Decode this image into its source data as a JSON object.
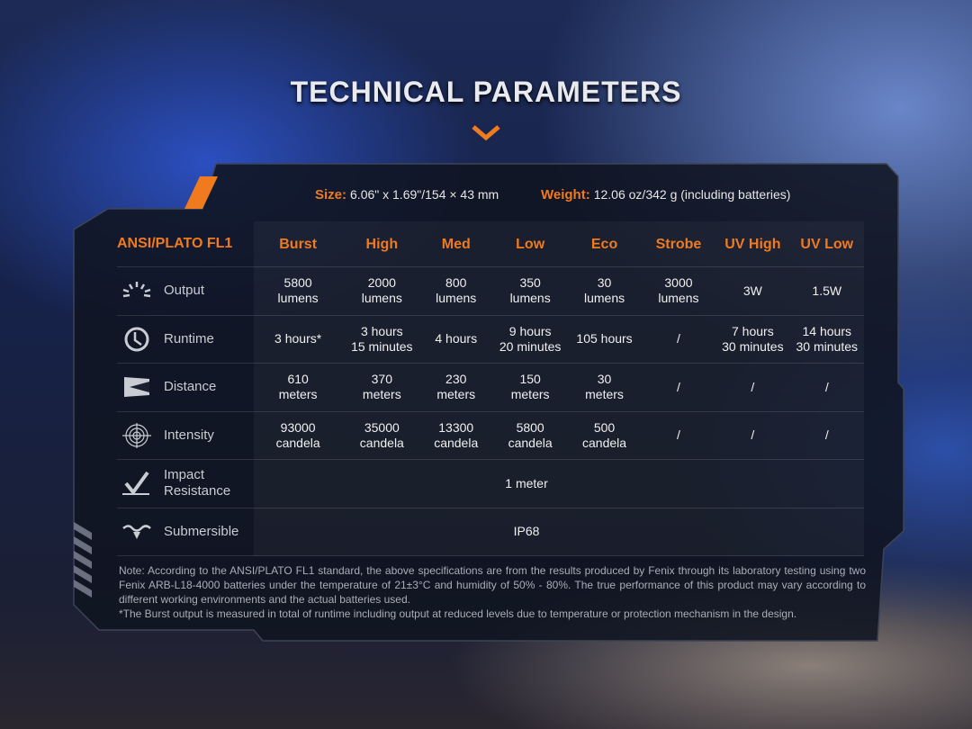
{
  "title": "TECHNICAL PARAMETERS",
  "size": {
    "label": "Size:",
    "value": "6.06\" x 1.69\"/154 × 43 mm"
  },
  "weight": {
    "label": "Weight:",
    "value": "12.06 oz/342 g (including batteries)"
  },
  "colors": {
    "accent": "#f07a1e",
    "panel": "#141a28"
  },
  "table": {
    "header": "ANSI/PLATO FL1",
    "modes": [
      "Burst",
      "High",
      "Med",
      "Low",
      "Eco",
      "Strobe",
      "UV High",
      "UV Low"
    ],
    "rows": [
      {
        "label": "Output",
        "icon": "output-burst-icon",
        "values": [
          "5800\nlumens",
          "2000\nlumens",
          "800\nlumens",
          "350\nlumens",
          "30\nlumens",
          "3000\nlumens",
          "3W",
          "1.5W"
        ]
      },
      {
        "label": "Runtime",
        "icon": "clock-icon",
        "values": [
          "3 hours*",
          "3 hours\n15 minutes",
          "4 hours",
          "9 hours\n20 minutes",
          "105 hours",
          "/",
          "7 hours\n30 minutes",
          "14 hours\n30 minutes"
        ]
      },
      {
        "label": "Distance",
        "icon": "beam-distance-icon",
        "values": [
          "610\nmeters",
          "370\nmeters",
          "230\nmeters",
          "150\nmeters",
          "30\nmeters",
          "/",
          "/",
          "/"
        ]
      },
      {
        "label": "Intensity",
        "icon": "target-intensity-icon",
        "values": [
          "93000\ncandela",
          "35000\ncandela",
          "13300\ncandela",
          "5800\ncandela",
          "500\ncandela",
          "/",
          "/",
          "/"
        ]
      },
      {
        "label": "Impact\nResistance",
        "icon": "impact-icon",
        "merged": "1 meter"
      },
      {
        "label": "Submersible",
        "icon": "water-icon",
        "merged": "IP68"
      }
    ]
  },
  "notes": [
    "Note: According to the ANSI/PLATO FL1 standard, the above specifications are from the results produced by Fenix through its laboratory testing using two Fenix ARB-L18-4000 batteries under the temperature of 21±3°C and humidity of 50% - 80%. The true performance of this product may vary according to different working environments and the actual batteries used.",
    "*The Burst output is measured in total of runtime including output at reduced levels due to temperature or protection mechanism in the design."
  ]
}
